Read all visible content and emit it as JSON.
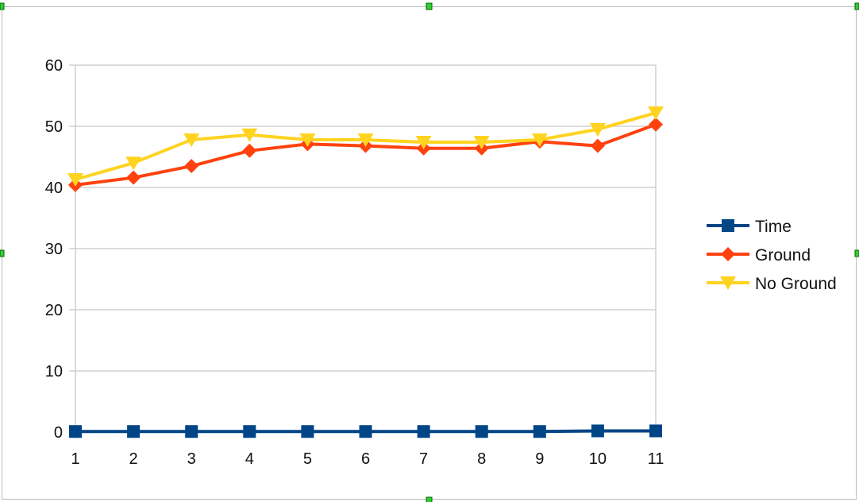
{
  "chart_data": {
    "type": "line",
    "categories": [
      "1",
      "2",
      "3",
      "4",
      "5",
      "6",
      "7",
      "8",
      "9",
      "10",
      "11"
    ],
    "series": [
      {
        "name": "Time",
        "color": "#004586",
        "marker": "square",
        "values": [
          0.1,
          0.1,
          0.1,
          0.1,
          0.1,
          0.1,
          0.1,
          0.1,
          0.1,
          0.2,
          0.2
        ]
      },
      {
        "name": "Ground",
        "color": "#ff420e",
        "marker": "diamond",
        "values": [
          40.4,
          41.6,
          43.5,
          46.0,
          47.1,
          46.8,
          46.4,
          46.4,
          47.5,
          46.8,
          50.3
        ]
      },
      {
        "name": "No Ground",
        "color": "#ffd320",
        "marker": "triangle-down",
        "values": [
          41.3,
          44.0,
          47.8,
          48.6,
          47.8,
          47.8,
          47.4,
          47.4,
          47.8,
          49.5,
          52.2
        ]
      }
    ],
    "yticks": [
      "0",
      "10",
      "20",
      "30",
      "40",
      "50",
      "60"
    ],
    "ylim": [
      0,
      60
    ],
    "grid": true,
    "legend": "right",
    "title": "",
    "xlabel": "",
    "ylabel": ""
  }
}
